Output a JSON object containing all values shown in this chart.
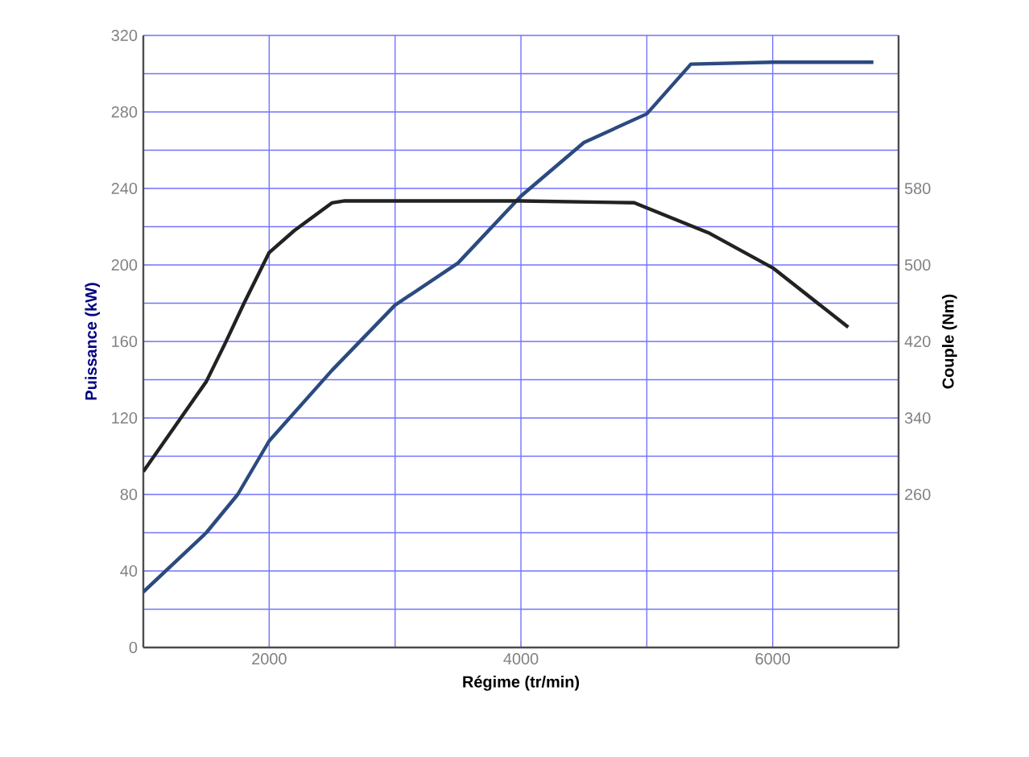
{
  "chart_data": {
    "type": "line",
    "xlabel": "Régime (tr/min)",
    "ylabel": "Puissance (kW)",
    "y2label": "Couple (Nm)",
    "xlim": [
      1000,
      7000
    ],
    "xticks": [
      {
        "value": 1000,
        "label": null
      },
      2000,
      {
        "value": 3000,
        "label": null
      },
      4000,
      {
        "value": 5000,
        "label": null
      },
      6000
    ],
    "ylim": [
      0,
      320
    ],
    "yticks": [
      0,
      {
        "value": 20,
        "label": null
      },
      40,
      {
        "value": 60,
        "label": null
      },
      80,
      {
        "value": 100,
        "label": null
      },
      120,
      {
        "value": 140,
        "label": null
      },
      160,
      {
        "value": 180,
        "label": null
      },
      200,
      {
        "value": 220,
        "label": null
      },
      240,
      {
        "value": 260,
        "label": null
      },
      280,
      {
        "value": 300,
        "label": null
      },
      320
    ],
    "y2lim": [
      100,
      740
    ],
    "y2ticks": [
      260,
      340,
      420,
      500,
      580
    ],
    "grid": true,
    "series": [
      {
        "color": "#2b4a80",
        "x": [
          1000,
          1500,
          1750,
          2000,
          2500,
          3000,
          3500,
          4000,
          4500,
          5000,
          5350,
          6000,
          6800
        ],
        "values": [
          29,
          60,
          80,
          108,
          145,
          179,
          201,
          236,
          264,
          279,
          305,
          306,
          306
        ]
      },
      {
        "color": "#222222",
        "axis": "y2",
        "x": [
          1000,
          1500,
          1650,
          1800,
          2000,
          2200,
          2500,
          2600,
          4000,
          4900,
          5500,
          6000,
          6600
        ],
        "values": [
          284,
          378,
          418,
          460,
          513,
          536,
          565,
          567,
          567,
          565,
          533,
          497,
          435
        ]
      }
    ]
  }
}
